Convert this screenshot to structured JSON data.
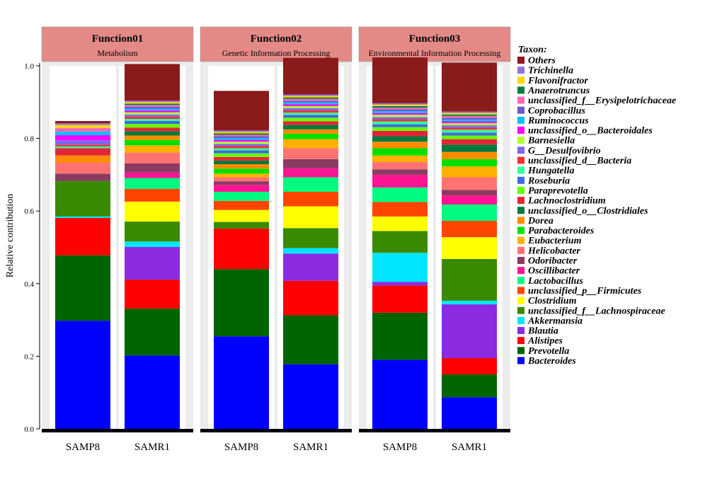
{
  "chart_data": {
    "type": "bar",
    "stacked": true,
    "ylabel": "Relative contribution",
    "ylim": [
      0,
      1.0
    ],
    "yticks": [
      "0.0",
      "0.2",
      "0.4",
      "0.6",
      "0.8",
      "1.0"
    ],
    "legend_title": "Taxon:",
    "legend_position": "right",
    "taxa": [
      {
        "name": "Bacteroides",
        "color": "#0000FF"
      },
      {
        "name": "Prevotella",
        "color": "#006400"
      },
      {
        "name": "Alistipes",
        "color": "#FF0000"
      },
      {
        "name": "Blautia",
        "color": "#8A2BE2"
      },
      {
        "name": "Akkermansia",
        "color": "#00E5FF"
      },
      {
        "name": "unclassified_f__Lachnospiraceae",
        "color": "#3A8A00"
      },
      {
        "name": "Clostridium",
        "color": "#FFFF00"
      },
      {
        "name": "unclassified_p__Firmicutes",
        "color": "#FF4500"
      },
      {
        "name": "Lactobacillus",
        "color": "#00FA7F"
      },
      {
        "name": "Oscillibacter",
        "color": "#FF1493"
      },
      {
        "name": "Odoribacter",
        "color": "#8B3A62"
      },
      {
        "name": "Helicobacter",
        "color": "#FF7272"
      },
      {
        "name": "Eubacterium",
        "color": "#FFB000"
      },
      {
        "name": "Parabacteroides",
        "color": "#00E000"
      },
      {
        "name": "Dorea",
        "color": "#FF8C00"
      },
      {
        "name": "unclassified_o__Clostridiales",
        "color": "#007A3D"
      },
      {
        "name": "Lachnoclostridium",
        "color": "#E32636"
      },
      {
        "name": "Paraprevotella",
        "color": "#66FF00"
      },
      {
        "name": "Roseburia",
        "color": "#4169E1"
      },
      {
        "name": "Hungatella",
        "color": "#33FF99"
      },
      {
        "name": "unclassified_d__Bacteria",
        "color": "#EE3030"
      },
      {
        "name": "G__Desulfovibrio",
        "color": "#7B68EE"
      },
      {
        "name": "Barnesiella",
        "color": "#ADFF2F"
      },
      {
        "name": "unclassified_o__Bacteroidales",
        "color": "#FF00FF"
      },
      {
        "name": "Ruminococcus",
        "color": "#00BFFF"
      },
      {
        "name": "Coprobacillus",
        "color": "#6A5ACD"
      },
      {
        "name": "unclassified_f__Erysipelotrichaceae",
        "color": "#FF69B4"
      },
      {
        "name": "Anaerotruncus",
        "color": "#008040"
      },
      {
        "name": "Flavonifractor",
        "color": "#FFD700"
      },
      {
        "name": "Trichinella",
        "color": "#9370DB"
      },
      {
        "name": "Others",
        "color": "#8B1A1A"
      }
    ],
    "panels": [
      {
        "title": "Function01",
        "subtitle": "Metabolism",
        "bars": [
          {
            "label": "SAMP8",
            "values": [
              0.298,
              0.18,
              0.103,
              0.0,
              0.004,
              0.098,
              0.0,
              0.0,
              0.0,
              0.0,
              0.02,
              0.03,
              0.0,
              0.0,
              0.02,
              0.0,
              0.02,
              0.0,
              0.0,
              0.005,
              0.005,
              0.012,
              0.0,
              0.014,
              0.01,
              0.0,
              0.01,
              0.0,
              0.008,
              0.005,
              0.006
            ]
          },
          {
            "label": "SAMR1",
            "values": [
              0.202,
              0.129,
              0.08,
              0.09,
              0.015,
              0.055,
              0.055,
              0.035,
              0.03,
              0.015,
              0.025,
              0.03,
              0.02,
              0.015,
              0.012,
              0.012,
              0.01,
              0.01,
              0.008,
              0.006,
              0.006,
              0.006,
              0.006,
              0.005,
              0.005,
              0.005,
              0.005,
              0.004,
              0.004,
              0.004,
              0.101
            ]
          }
        ]
      },
      {
        "title": "Function02",
        "subtitle": "Genetic Information Processing",
        "bars": [
          {
            "label": "SAMP8",
            "values": [
              0.255,
              0.185,
              0.112,
              0.0,
              0.0,
              0.018,
              0.033,
              0.025,
              0.025,
              0.019,
              0.01,
              0.011,
              0.01,
              0.014,
              0.012,
              0.01,
              0.01,
              0.01,
              0.008,
              0.006,
              0.006,
              0.006,
              0.006,
              0.005,
              0.005,
              0.005,
              0.004,
              0.004,
              0.004,
              0.004,
              0.109
            ]
          },
          {
            "label": "SAMR1",
            "values": [
              0.178,
              0.135,
              0.095,
              0.075,
              0.015,
              0.055,
              0.06,
              0.04,
              0.04,
              0.025,
              0.025,
              0.03,
              0.025,
              0.015,
              0.012,
              0.012,
              0.01,
              0.01,
              0.008,
              0.006,
              0.006,
              0.006,
              0.006,
              0.005,
              0.005,
              0.005,
              0.005,
              0.004,
              0.004,
              0.004,
              0.101
            ]
          }
        ]
      },
      {
        "title": "Function03",
        "subtitle": "Environmental Information Processing",
        "bars": [
          {
            "label": "SAMP8",
            "values": [
              0.19,
              0.13,
              0.075,
              0.01,
              0.08,
              0.06,
              0.04,
              0.04,
              0.04,
              0.035,
              0.015,
              0.02,
              0.018,
              0.02,
              0.018,
              0.015,
              0.015,
              0.01,
              0.008,
              0.008,
              0.006,
              0.006,
              0.006,
              0.005,
              0.005,
              0.005,
              0.005,
              0.004,
              0.004,
              0.004,
              0.126
            ]
          },
          {
            "label": "SAMR1",
            "values": [
              0.087,
              0.063,
              0.045,
              0.148,
              0.01,
              0.115,
              0.06,
              0.045,
              0.045,
              0.025,
              0.015,
              0.035,
              0.03,
              0.02,
              0.02,
              0.02,
              0.015,
              0.01,
              0.008,
              0.008,
              0.006,
              0.006,
              0.006,
              0.005,
              0.005,
              0.005,
              0.005,
              0.004,
              0.004,
              0.004,
              0.135
            ]
          }
        ]
      }
    ]
  }
}
